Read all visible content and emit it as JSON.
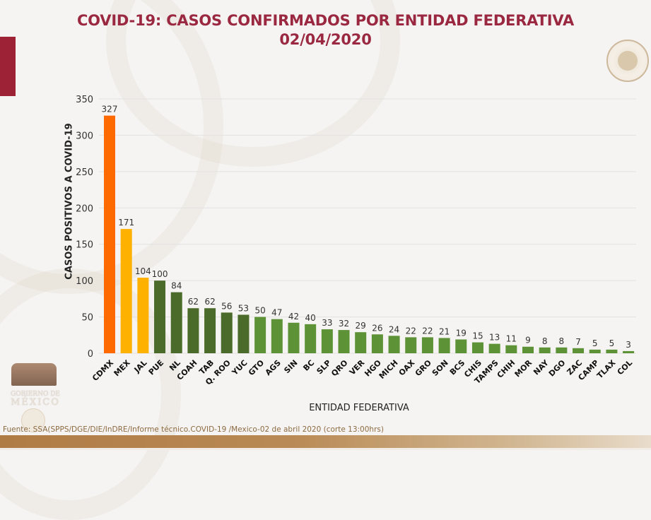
{
  "header": {
    "title_line1": "COVID-19: CASOS CONFIRMADOS POR ENTIDAD FEDERATIVA",
    "title_line2": "02/04/2020"
  },
  "logos": {
    "seal_icon": "escudo-nacional-icon",
    "gov_logo_line1": "GOBIERNO DE",
    "gov_logo_line2": "MÉXICO"
  },
  "footer": {
    "source": "Fuente: SSA(SPPS/DGE/DIE/InDRE/Informe técnico.COVID-19 /Mexico-02 de abril 2020 (corte 13:00hrs)"
  },
  "colors": {
    "title": "#9b2841",
    "side_tab": "#9e2236",
    "highest": "#ff6a00",
    "high": "#ffb100",
    "medium": "#4b6b2a",
    "low": "#5e9236",
    "gold": "#b07c46"
  },
  "chart_data": {
    "type": "bar",
    "title": "COVID-19: CASOS CONFIRMADOS POR ENTIDAD FEDERATIVA 02/04/2020",
    "xlabel": "ENTIDAD FEDERATIVA",
    "ylabel": "CASOS POSITIVOS A COVID-19",
    "ylim": [
      0,
      350
    ],
    "yticks": [
      0,
      50,
      100,
      150,
      200,
      250,
      300,
      350
    ],
    "grid": true,
    "categories": [
      "CDMX",
      "MEX",
      "JAL",
      "PUE",
      "NL",
      "COAH",
      "TAB",
      "Q. ROO",
      "YUC",
      "GTO",
      "AGS",
      "SIN",
      "BC",
      "SLP",
      "QRO",
      "VER",
      "HGO",
      "MICH",
      "OAX",
      "GRO",
      "SON",
      "BCS",
      "CHIS",
      "TAMPS",
      "CHIH",
      "MOR",
      "NAY",
      "DGO",
      "ZAC",
      "CAMP",
      "TLAX",
      "COL"
    ],
    "values": [
      327,
      171,
      104,
      100,
      84,
      62,
      62,
      56,
      53,
      50,
      47,
      42,
      40,
      33,
      32,
      29,
      26,
      24,
      22,
      22,
      21,
      19,
      15,
      13,
      11,
      9,
      8,
      8,
      7,
      5,
      5,
      3
    ],
    "bar_color_group": [
      "highest",
      "high",
      "high",
      "medium",
      "medium",
      "medium",
      "medium",
      "medium",
      "medium",
      "low",
      "low",
      "low",
      "low",
      "low",
      "low",
      "low",
      "low",
      "low",
      "low",
      "low",
      "low",
      "low",
      "low",
      "low",
      "low",
      "low",
      "low",
      "low",
      "low",
      "low",
      "low",
      "low"
    ]
  }
}
